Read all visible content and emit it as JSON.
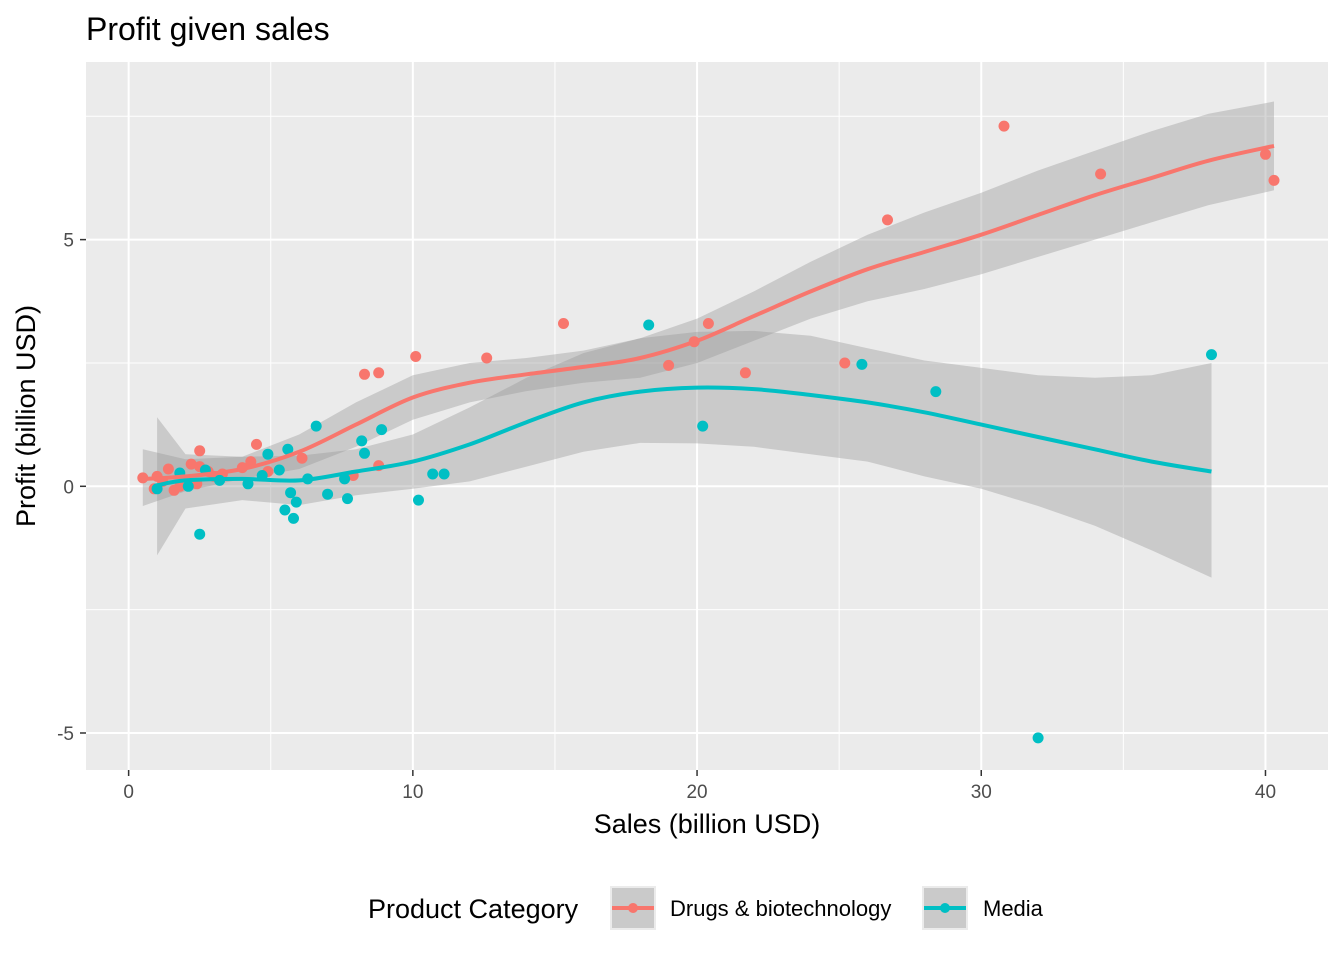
{
  "chart_data": {
    "type": "scatter",
    "title": "Profit given sales",
    "xlabel": "Sales (billion USD)",
    "ylabel": "Profit (billion USD)",
    "xlim": [
      -1.5,
      42.2
    ],
    "ylim": [
      -5.75,
      8.6
    ],
    "x_ticks": [
      0,
      10,
      20,
      30,
      40
    ],
    "y_ticks": [
      -5,
      0,
      5
    ],
    "x_tick_labels": [
      "0",
      "10",
      "20",
      "30",
      "40"
    ],
    "y_tick_labels": [
      "-5",
      "0",
      "5"
    ],
    "grid": true,
    "legend_position": "bottom",
    "legend_title": "Product Category",
    "colors": {
      "panel": "#ebebeb",
      "grid": "#ffffff",
      "ribbon": "#999999"
    },
    "series": [
      {
        "name": "Drugs & biotechnology",
        "color": "#f8766d",
        "points": [
          [
            0.5,
            0.17
          ],
          [
            0.9,
            -0.05
          ],
          [
            1.0,
            0.2
          ],
          [
            1.2,
            0.1
          ],
          [
            1.4,
            0.35
          ],
          [
            1.6,
            -0.08
          ],
          [
            1.8,
            0.0
          ],
          [
            2.2,
            0.45
          ],
          [
            2.4,
            0.05
          ],
          [
            2.5,
            0.4
          ],
          [
            2.5,
            0.72
          ],
          [
            2.8,
            0.3
          ],
          [
            3.0,
            0.2
          ],
          [
            3.3,
            0.25
          ],
          [
            4.0,
            0.38
          ],
          [
            4.3,
            0.5
          ],
          [
            4.5,
            0.85
          ],
          [
            4.9,
            0.3
          ],
          [
            6.1,
            0.57
          ],
          [
            7.9,
            0.22
          ],
          [
            8.3,
            2.27
          ],
          [
            8.8,
            0.42
          ],
          [
            8.8,
            2.3
          ],
          [
            10.1,
            2.63
          ],
          [
            12.6,
            2.6
          ],
          [
            15.3,
            3.3
          ],
          [
            19.0,
            2.45
          ],
          [
            19.9,
            2.93
          ],
          [
            20.4,
            3.3
          ],
          [
            21.7,
            2.3
          ],
          [
            25.2,
            2.5
          ],
          [
            26.7,
            5.4
          ],
          [
            30.8,
            7.3
          ],
          [
            34.2,
            6.33
          ],
          [
            40.0,
            6.73
          ],
          [
            40.3,
            6.2
          ]
        ],
        "smooth": [
          [
            0.5,
            0.15
          ],
          [
            2,
            0.2
          ],
          [
            4,
            0.35
          ],
          [
            6,
            0.7
          ],
          [
            8,
            1.25
          ],
          [
            10,
            1.8
          ],
          [
            12,
            2.1
          ],
          [
            14,
            2.27
          ],
          [
            16,
            2.42
          ],
          [
            18,
            2.6
          ],
          [
            20,
            2.95
          ],
          [
            22,
            3.45
          ],
          [
            24,
            3.95
          ],
          [
            26,
            4.4
          ],
          [
            28,
            4.75
          ],
          [
            30,
            5.1
          ],
          [
            32,
            5.5
          ],
          [
            34,
            5.9
          ],
          [
            36,
            6.25
          ],
          [
            38,
            6.6
          ],
          [
            40.3,
            6.9
          ]
        ],
        "band_upper": [
          [
            0.5,
            0.75
          ],
          [
            2,
            0.55
          ],
          [
            4,
            0.6
          ],
          [
            6,
            1.05
          ],
          [
            8,
            1.7
          ],
          [
            10,
            2.25
          ],
          [
            12,
            2.5
          ],
          [
            14,
            2.6
          ],
          [
            16,
            2.75
          ],
          [
            18,
            3.0
          ],
          [
            20,
            3.4
          ],
          [
            22,
            3.95
          ],
          [
            24,
            4.55
          ],
          [
            26,
            5.1
          ],
          [
            28,
            5.55
          ],
          [
            30,
            5.95
          ],
          [
            32,
            6.4
          ],
          [
            34,
            6.8
          ],
          [
            36,
            7.2
          ],
          [
            38,
            7.55
          ],
          [
            40.3,
            7.8
          ]
        ],
        "band_lower": [
          [
            0.5,
            -0.4
          ],
          [
            2,
            -0.1
          ],
          [
            4,
            0.15
          ],
          [
            6,
            0.35
          ],
          [
            8,
            0.8
          ],
          [
            10,
            1.35
          ],
          [
            12,
            1.7
          ],
          [
            14,
            1.93
          ],
          [
            16,
            2.1
          ],
          [
            18,
            2.2
          ],
          [
            20,
            2.5
          ],
          [
            22,
            2.95
          ],
          [
            24,
            3.4
          ],
          [
            26,
            3.75
          ],
          [
            28,
            4.0
          ],
          [
            30,
            4.3
          ],
          [
            32,
            4.65
          ],
          [
            34,
            5.0
          ],
          [
            36,
            5.35
          ],
          [
            38,
            5.7
          ],
          [
            40.3,
            6.0
          ]
        ]
      },
      {
        "name": "Media",
        "color": "#00bfc4",
        "points": [
          [
            1.0,
            -0.05
          ],
          [
            1.8,
            0.27
          ],
          [
            2.1,
            0.0
          ],
          [
            2.5,
            -0.97
          ],
          [
            2.7,
            0.33
          ],
          [
            3.2,
            0.12
          ],
          [
            4.2,
            0.05
          ],
          [
            4.7,
            0.22
          ],
          [
            4.9,
            0.65
          ],
          [
            5.3,
            0.33
          ],
          [
            5.5,
            -0.48
          ],
          [
            5.6,
            0.75
          ],
          [
            5.7,
            -0.13
          ],
          [
            5.8,
            -0.65
          ],
          [
            5.9,
            -0.32
          ],
          [
            6.3,
            0.15
          ],
          [
            6.6,
            1.22
          ],
          [
            7.0,
            -0.16
          ],
          [
            7.6,
            0.15
          ],
          [
            7.7,
            -0.25
          ],
          [
            8.2,
            0.92
          ],
          [
            8.3,
            0.67
          ],
          [
            8.9,
            1.15
          ],
          [
            10.2,
            -0.28
          ],
          [
            10.7,
            0.25
          ],
          [
            11.1,
            0.25
          ],
          [
            18.3,
            3.27
          ],
          [
            20.2,
            1.22
          ],
          [
            25.8,
            2.47
          ],
          [
            28.4,
            1.92
          ],
          [
            32.0,
            -5.1
          ],
          [
            38.1,
            2.67
          ]
        ],
        "smooth": [
          [
            1.0,
            0.02
          ],
          [
            2,
            0.12
          ],
          [
            4,
            0.15
          ],
          [
            6,
            0.12
          ],
          [
            8,
            0.3
          ],
          [
            10,
            0.5
          ],
          [
            12,
            0.85
          ],
          [
            14,
            1.3
          ],
          [
            16,
            1.7
          ],
          [
            18,
            1.92
          ],
          [
            20,
            2.0
          ],
          [
            22,
            1.97
          ],
          [
            24,
            1.85
          ],
          [
            26,
            1.7
          ],
          [
            28,
            1.5
          ],
          [
            30,
            1.25
          ],
          [
            32,
            1.0
          ],
          [
            34,
            0.75
          ],
          [
            36,
            0.5
          ],
          [
            38.1,
            0.3
          ]
        ],
        "band_upper": [
          [
            1.0,
            1.4
          ],
          [
            2,
            0.65
          ],
          [
            4,
            0.6
          ],
          [
            6,
            0.62
          ],
          [
            8,
            0.75
          ],
          [
            10,
            1.05
          ],
          [
            12,
            1.6
          ],
          [
            14,
            2.2
          ],
          [
            16,
            2.7
          ],
          [
            18,
            3.0
          ],
          [
            20,
            3.13
          ],
          [
            22,
            3.15
          ],
          [
            24,
            3.05
          ],
          [
            26,
            2.8
          ],
          [
            28,
            2.55
          ],
          [
            30,
            2.4
          ],
          [
            32,
            2.25
          ],
          [
            34,
            2.2
          ],
          [
            36,
            2.25
          ],
          [
            38.1,
            2.5
          ]
        ],
        "band_lower": [
          [
            1.0,
            -1.4
          ],
          [
            2,
            -0.45
          ],
          [
            4,
            -0.28
          ],
          [
            6,
            -0.38
          ],
          [
            8,
            -0.18
          ],
          [
            10,
            -0.05
          ],
          [
            12,
            0.1
          ],
          [
            14,
            0.4
          ],
          [
            16,
            0.7
          ],
          [
            18,
            0.88
          ],
          [
            20,
            0.87
          ],
          [
            22,
            0.8
          ],
          [
            24,
            0.65
          ],
          [
            26,
            0.5
          ],
          [
            28,
            0.2
          ],
          [
            30,
            -0.05
          ],
          [
            32,
            -0.4
          ],
          [
            34,
            -0.8
          ],
          [
            36,
            -1.3
          ],
          [
            38.1,
            -1.85
          ]
        ]
      }
    ]
  }
}
